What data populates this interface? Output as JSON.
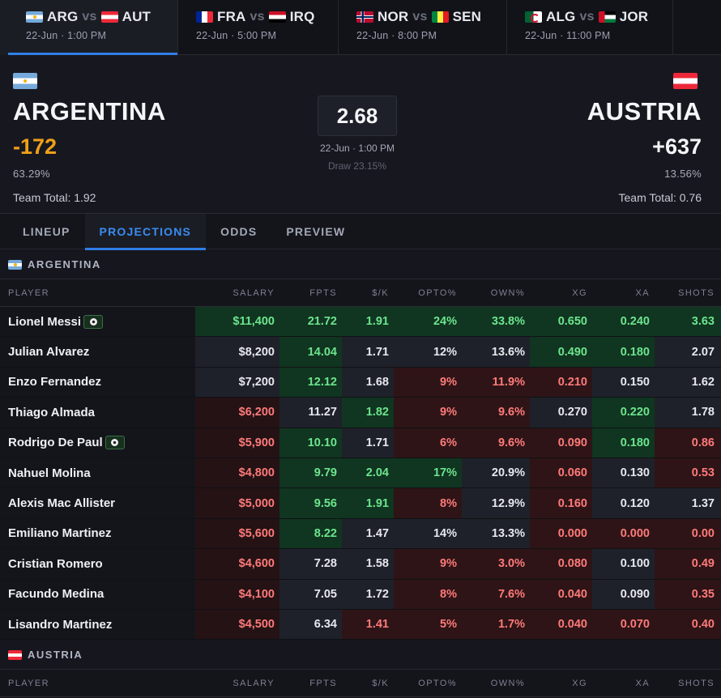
{
  "matches": [
    {
      "home": "ARG",
      "away": "AUT",
      "vs": "vs",
      "time": "22-Jun · 1:00 PM",
      "home_flag": "flag-arg",
      "away_flag": "flag-aut",
      "active": true
    },
    {
      "home": "FRA",
      "away": "IRQ",
      "vs": "vs",
      "time": "22-Jun · 5:00 PM",
      "home_flag": "flag-fra",
      "away_flag": "flag-irq",
      "active": false
    },
    {
      "home": "NOR",
      "away": "SEN",
      "vs": "vs",
      "time": "22-Jun · 8:00 PM",
      "home_flag": "flag-nor",
      "away_flag": "flag-sen",
      "active": false
    },
    {
      "home": "ALG",
      "away": "JOR",
      "vs": "vs",
      "time": "22-Jun · 11:00 PM",
      "home_flag": "flag-alg",
      "away_flag": "flag-jor",
      "active": false
    }
  ],
  "header": {
    "home": {
      "name": "ARGENTINA",
      "odds": "-172",
      "pct": "63.29%",
      "team_total": "Team Total: 1.92"
    },
    "away": {
      "name": "AUSTRIA",
      "odds": "+637",
      "pct": "13.56%",
      "team_total": "Team Total: 0.76"
    },
    "total": "2.68",
    "time": "22-Jun · 1:00 PM",
    "draw": "Draw 23.15%"
  },
  "tabs": [
    "LINEUP",
    "PROJECTIONS",
    "ODDS",
    "PREVIEW"
  ],
  "active_tab": 1,
  "sections": {
    "home": "ARGENTINA",
    "away": "AUSTRIA"
  },
  "columns": [
    "PLAYER",
    "SALARY",
    "FPTS",
    "$/K",
    "OPTO%",
    "OWN%",
    "XG",
    "XA",
    "SHOTS"
  ],
  "players": [
    {
      "name": "Lionel Messi",
      "badge": true,
      "salary": "$11,400",
      "fpts": "21.72",
      "spk": "1.91",
      "opto": "24%",
      "own": "33.8%",
      "xg": "0.650",
      "xa": "0.240",
      "shots": "3.63",
      "tone": [
        "g",
        "g",
        "g",
        "g",
        "g",
        "g",
        "g",
        "g"
      ]
    },
    {
      "name": "Julian Alvarez",
      "badge": false,
      "salary": "$8,200",
      "fpts": "14.04",
      "spk": "1.71",
      "opto": "12%",
      "own": "13.6%",
      "xg": "0.490",
      "xa": "0.180",
      "shots": "2.07",
      "tone": [
        "n",
        "g",
        "n",
        "n",
        "n",
        "g",
        "g",
        "n"
      ]
    },
    {
      "name": "Enzo Fernandez",
      "badge": false,
      "salary": "$7,200",
      "fpts": "12.12",
      "spk": "1.68",
      "opto": "9%",
      "own": "11.9%",
      "xg": "0.210",
      "xa": "0.150",
      "shots": "1.62",
      "tone": [
        "n",
        "g",
        "n",
        "r",
        "r",
        "r",
        "n",
        "n"
      ]
    },
    {
      "name": "Thiago Almada",
      "badge": false,
      "salary": "$6,200",
      "fpts": "11.27",
      "spk": "1.82",
      "opto": "9%",
      "own": "9.6%",
      "xg": "0.270",
      "xa": "0.220",
      "shots": "1.78",
      "tone": [
        "rl",
        "n",
        "g",
        "r",
        "r",
        "n",
        "g",
        "n"
      ]
    },
    {
      "name": "Rodrigo De Paul",
      "badge": true,
      "salary": "$5,900",
      "fpts": "10.10",
      "spk": "1.71",
      "opto": "6%",
      "own": "9.6%",
      "xg": "0.090",
      "xa": "0.180",
      "shots": "0.86",
      "tone": [
        "rl",
        "g",
        "n",
        "r",
        "r",
        "r",
        "g",
        "r"
      ]
    },
    {
      "name": "Nahuel Molina",
      "badge": false,
      "salary": "$4,800",
      "fpts": "9.79",
      "spk": "2.04",
      "opto": "17%",
      "own": "20.9%",
      "xg": "0.060",
      "xa": "0.130",
      "shots": "0.53",
      "tone": [
        "rl",
        "g",
        "g",
        "g",
        "n",
        "r",
        "n",
        "r"
      ]
    },
    {
      "name": "Alexis Mac Allister",
      "badge": false,
      "salary": "$5,000",
      "fpts": "9.56",
      "spk": "1.91",
      "opto": "8%",
      "own": "12.9%",
      "xg": "0.160",
      "xa": "0.120",
      "shots": "1.37",
      "tone": [
        "rl",
        "g",
        "g",
        "r",
        "n",
        "r",
        "n",
        "n"
      ]
    },
    {
      "name": "Emiliano Martinez",
      "badge": false,
      "salary": "$5,600",
      "fpts": "8.22",
      "spk": "1.47",
      "opto": "14%",
      "own": "13.3%",
      "xg": "0.000",
      "xa": "0.000",
      "shots": "0.00",
      "tone": [
        "rl",
        "g",
        "n",
        "n",
        "n",
        "r",
        "r",
        "r"
      ]
    },
    {
      "name": "Cristian Romero",
      "badge": false,
      "salary": "$4,600",
      "fpts": "7.28",
      "spk": "1.58",
      "opto": "9%",
      "own": "3.0%",
      "xg": "0.080",
      "xa": "0.100",
      "shots": "0.49",
      "tone": [
        "rl",
        "n",
        "n",
        "r",
        "r",
        "r",
        "n",
        "r"
      ]
    },
    {
      "name": "Facundo Medina",
      "badge": false,
      "salary": "$4,100",
      "fpts": "7.05",
      "spk": "1.72",
      "opto": "8%",
      "own": "7.6%",
      "xg": "0.040",
      "xa": "0.090",
      "shots": "0.35",
      "tone": [
        "rl",
        "n",
        "n",
        "r",
        "r",
        "r",
        "n",
        "r"
      ]
    },
    {
      "name": "Lisandro Martinez",
      "badge": false,
      "salary": "$4,500",
      "fpts": "6.34",
      "spk": "1.41",
      "opto": "5%",
      "own": "1.7%",
      "xg": "0.040",
      "xa": "0.070",
      "shots": "0.40",
      "tone": [
        "rl",
        "n",
        "r",
        "r",
        "r",
        "r",
        "r",
        "r"
      ]
    }
  ]
}
